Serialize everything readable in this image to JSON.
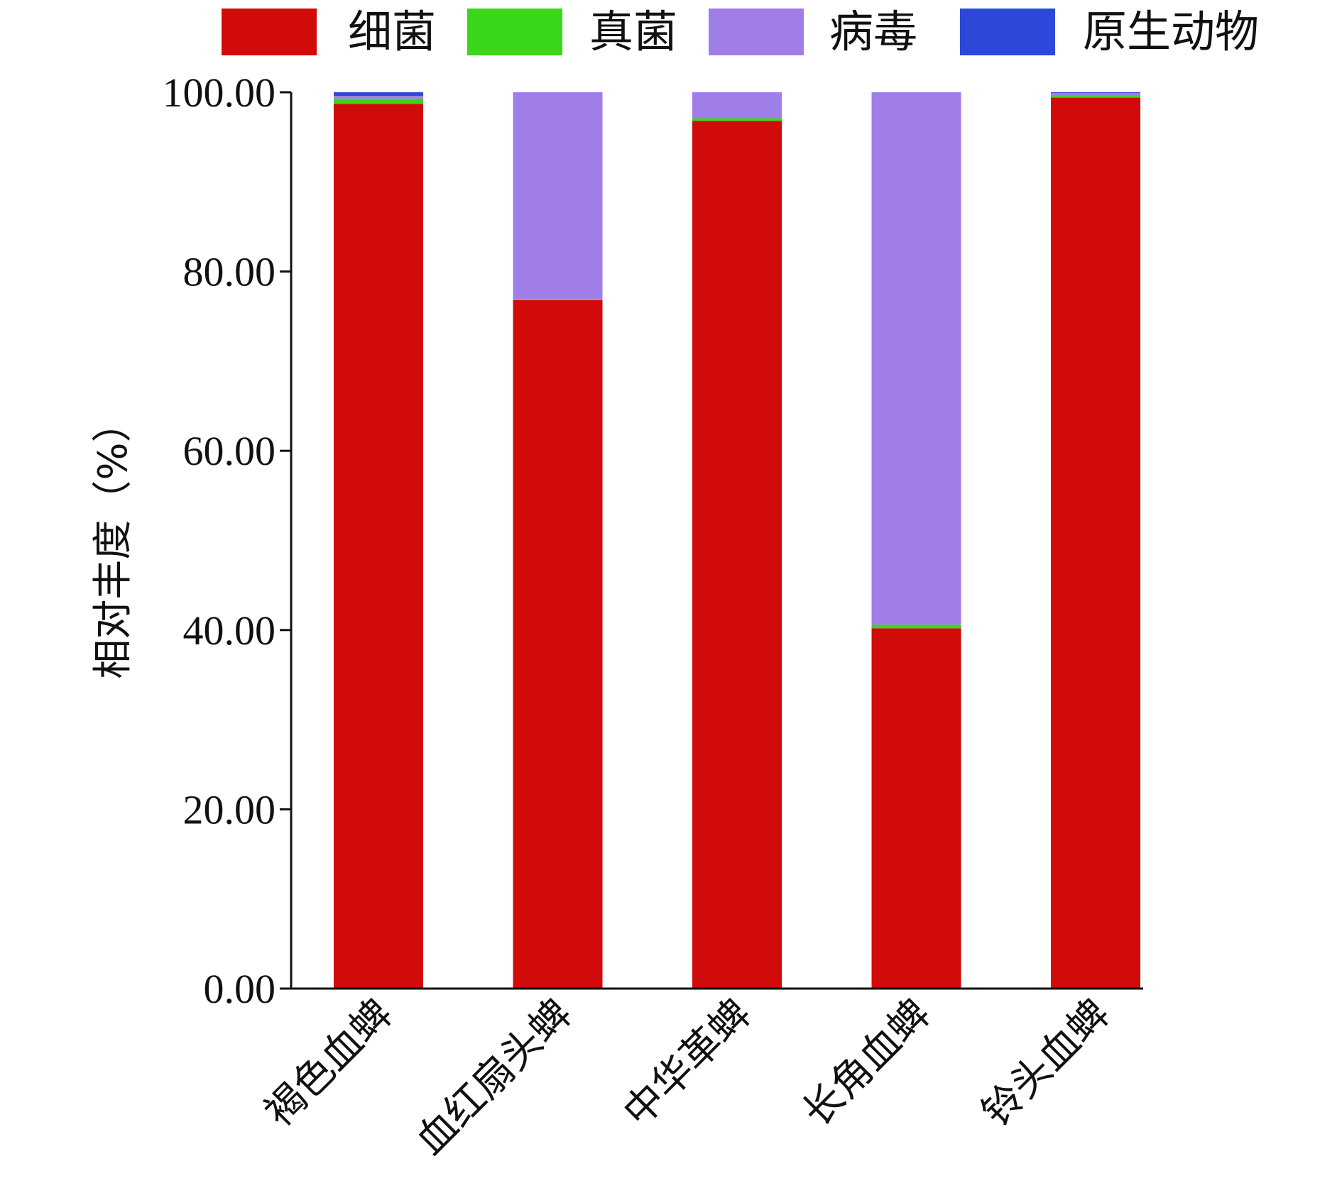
{
  "chart_data": {
    "type": "bar",
    "stacked": true,
    "categories": [
      "褐色血蜱",
      "血红扇头蜱",
      "中华革蜱",
      "长角血蜱",
      "铃头血蜱"
    ],
    "series": [
      {
        "name": "细菌",
        "color": "#d10a0a",
        "values": [
          98.7,
          76.8,
          96.8,
          40.2,
          99.4
        ]
      },
      {
        "name": "真菌",
        "color": "#39d619",
        "values": [
          0.6,
          0.1,
          0.3,
          0.4,
          0.2
        ]
      },
      {
        "name": "病毒",
        "color": "#a07ee8",
        "values": [
          0.3,
          23.1,
          2.9,
          59.4,
          0.3
        ]
      },
      {
        "name": "原生动物",
        "color": "#2b48d8",
        "values": [
          0.4,
          0.0,
          0.0,
          0.0,
          0.1
        ]
      }
    ],
    "ylabel": "相对丰度（%）",
    "xlabel": "",
    "ylim": [
      0,
      100
    ],
    "yticks": [
      "0.00",
      "20.00",
      "40.00",
      "60.00",
      "80.00",
      "100.00"
    ],
    "grid": false,
    "legend_position": "top"
  }
}
